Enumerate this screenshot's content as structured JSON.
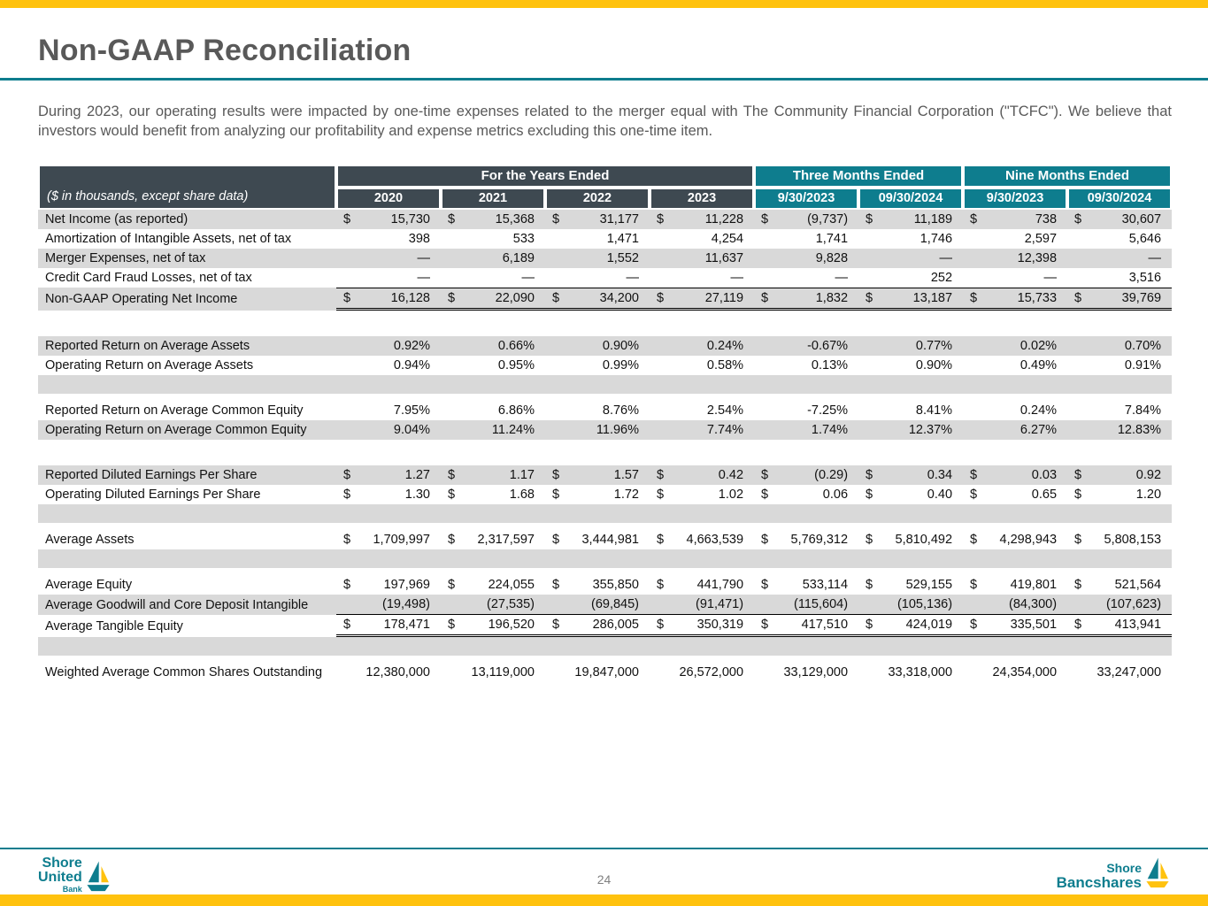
{
  "page": {
    "title": "Non-GAAP Reconciliation",
    "intro": "During 2023, our operating results were impacted by one-time expenses related to the merger equal with The Community Financial Corporation (\"TCFC\"). We believe that investors would benefit from analyzing our profitability and expense metrics excluding this one-time item.",
    "page_number": "24"
  },
  "colors": {
    "gold": "#FFC20E",
    "teal": "#0E7D8E",
    "slate": "#3E4951",
    "row_shade": "#D9D9D9",
    "title_gray": "#595959"
  },
  "table": {
    "note": "($ in thousands, except share data)",
    "groups": [
      {
        "label": "For the Years Ended",
        "cols": 4,
        "style": "slate"
      },
      {
        "label": "Three Months Ended",
        "cols": 2,
        "style": "teal"
      },
      {
        "label": "Nine Months Ended",
        "cols": 2,
        "style": "teal"
      }
    ],
    "columns": [
      {
        "label": "2020",
        "style": "slate"
      },
      {
        "label": "2021",
        "style": "slate"
      },
      {
        "label": "2022",
        "style": "slate"
      },
      {
        "label": "2023",
        "style": "slate"
      },
      {
        "label": "9/30/2023",
        "style": "teal"
      },
      {
        "label": "09/30/2024",
        "style": "teal"
      },
      {
        "label": "9/30/2023",
        "style": "teal"
      },
      {
        "label": "09/30/2024",
        "style": "teal"
      }
    ],
    "rows": [
      {
        "type": "data",
        "label": "Net Income (as reported)",
        "shaded": true,
        "dollar": true,
        "values": [
          "15,730",
          "15,368",
          "31,177",
          "11,228",
          "(9,737)",
          "11,189",
          "738",
          "30,607"
        ]
      },
      {
        "type": "data",
        "label": "Amortization of Intangible Assets, net of tax",
        "shaded": false,
        "dollar": false,
        "values": [
          "398",
          "533",
          "1,471",
          "4,254",
          "1,741",
          "1,746",
          "2,597",
          "5,646"
        ]
      },
      {
        "type": "data",
        "label": "Merger Expenses, net of tax",
        "shaded": true,
        "dollar": false,
        "values": [
          "—",
          "6,189",
          "1,552",
          "11,637",
          "9,828",
          "—",
          "12,398",
          "—"
        ]
      },
      {
        "type": "data",
        "label": "Credit Card Fraud Losses, net of tax",
        "shaded": false,
        "dollar": false,
        "values": [
          "—",
          "—",
          "—",
          "—",
          "—",
          "252",
          "—",
          "3,516"
        ]
      },
      {
        "type": "data",
        "label": "Non-GAAP Operating Net Income",
        "shaded": true,
        "dollar": true,
        "border": "total",
        "values": [
          "16,128",
          "22,090",
          "34,200",
          "27,119",
          "1,832",
          "13,187",
          "15,733",
          "39,769"
        ]
      },
      {
        "type": "spacer",
        "spacer": "white"
      },
      {
        "type": "data",
        "label": "Reported Return on Average Assets",
        "shaded": true,
        "dollar": false,
        "values": [
          "0.92%",
          "0.66%",
          "0.90%",
          "0.24%",
          "-0.67%",
          "0.77%",
          "0.02%",
          "0.70%"
        ]
      },
      {
        "type": "data",
        "label": "Operating Return on Average Assets",
        "shaded": false,
        "dollar": false,
        "values": [
          "0.94%",
          "0.95%",
          "0.99%",
          "0.58%",
          "0.13%",
          "0.90%",
          "0.49%",
          "0.91%"
        ]
      },
      {
        "type": "spacer",
        "spacer": "shaded"
      },
      {
        "type": "spacer",
        "spacer": "small"
      },
      {
        "type": "data",
        "label": "Reported Return on Average Common Equity",
        "shaded": false,
        "dollar": false,
        "values": [
          "7.95%",
          "6.86%",
          "8.76%",
          "2.54%",
          "-7.25%",
          "8.41%",
          "0.24%",
          "7.84%"
        ]
      },
      {
        "type": "data",
        "label": "Operating Return on Average Common Equity",
        "shaded": true,
        "dollar": false,
        "values": [
          "9.04%",
          "11.24%",
          "11.96%",
          "7.74%",
          "1.74%",
          "12.37%",
          "6.27%",
          "12.83%"
        ]
      },
      {
        "type": "spacer",
        "spacer": "white"
      },
      {
        "type": "data",
        "label": "Reported Diluted Earnings Per Share",
        "shaded": true,
        "dollar": true,
        "values": [
          "1.27",
          "1.17",
          "1.57",
          "0.42",
          "(0.29)",
          "0.34",
          "0.03",
          "0.92"
        ]
      },
      {
        "type": "data",
        "label": "Operating Diluted Earnings Per Share",
        "shaded": false,
        "dollar": true,
        "values": [
          "1.30",
          "1.68",
          "1.72",
          "1.02",
          "0.06",
          "0.40",
          "0.65",
          "1.20"
        ]
      },
      {
        "type": "spacer",
        "spacer": "shaded"
      },
      {
        "type": "spacer",
        "spacer": "small"
      },
      {
        "type": "data",
        "label": "Average Assets",
        "shaded": false,
        "dollar": true,
        "values": [
          "1,709,997",
          "2,317,597",
          "3,444,981",
          "4,663,539",
          "5,769,312",
          "5,810,492",
          "4,298,943",
          "5,808,153"
        ]
      },
      {
        "type": "spacer",
        "spacer": "shaded"
      },
      {
        "type": "spacer",
        "spacer": "small"
      },
      {
        "type": "data",
        "label": "Average Equity",
        "shaded": false,
        "dollar": true,
        "values": [
          "197,969",
          "224,055",
          "355,850",
          "441,790",
          "533,114",
          "529,155",
          "419,801",
          "521,564"
        ]
      },
      {
        "type": "data",
        "label": "Average Goodwill and Core Deposit Intangible",
        "shaded": true,
        "dollar": false,
        "border": "bottom",
        "values": [
          "(19,498)",
          "(27,535)",
          "(69,845)",
          "(91,471)",
          "(115,604)",
          "(105,136)",
          "(84,300)",
          "(107,623)"
        ]
      },
      {
        "type": "data",
        "label": "Average Tangible Equity",
        "shaded": false,
        "dollar": true,
        "border": "double",
        "values": [
          "178,471",
          "196,520",
          "286,005",
          "350,319",
          "417,510",
          "424,019",
          "335,501",
          "413,941"
        ]
      },
      {
        "type": "spacer",
        "spacer": "shaded"
      },
      {
        "type": "spacer",
        "spacer": "small"
      },
      {
        "type": "data",
        "label": "Weighted Average Common Shares Outstanding",
        "shaded": false,
        "dollar": false,
        "values": [
          "12,380,000",
          "13,119,000",
          "19,847,000",
          "26,572,000",
          "33,129,000",
          "33,318,000",
          "24,354,000",
          "33,247,000"
        ]
      }
    ]
  },
  "footer": {
    "left_logo": {
      "line1": "Shore",
      "line2": "United",
      "line3": "Bank"
    },
    "right_logo": {
      "line1": "Shore",
      "line2": "Bancshares"
    }
  }
}
